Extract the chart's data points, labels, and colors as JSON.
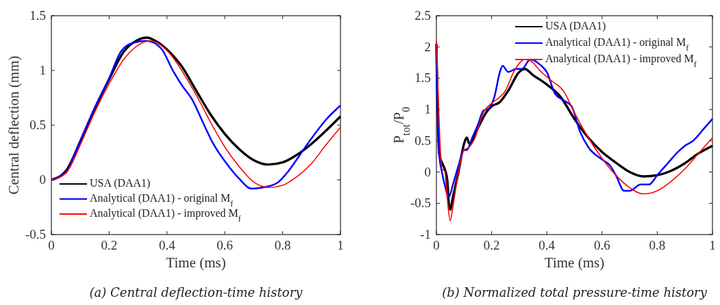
{
  "chart_data": [
    {
      "type": "line",
      "xlabel": "Time (ms)",
      "ylabel": "Central deflection (mm)",
      "xlim": [
        0,
        1
      ],
      "ylim": [
        -0.5,
        1.5
      ],
      "xticks": [
        0,
        0.2,
        0.4,
        0.6,
        0.8,
        1
      ],
      "yticks": [
        -0.5,
        0,
        0.5,
        1,
        1.5
      ],
      "legend": "bottom left",
      "grid": false,
      "annotations": [
        "(a) Central deflection-time history"
      ],
      "series": [
        {
          "name": "USA (DAA1)",
          "color": "#000000",
          "x": [
            0,
            0.05,
            0.1,
            0.15,
            0.2,
            0.25,
            0.3,
            0.33,
            0.36,
            0.4,
            0.45,
            0.5,
            0.55,
            0.6,
            0.65,
            0.7,
            0.75,
            0.8,
            0.85,
            0.9,
            0.95,
            1
          ],
          "values": [
            0,
            0.08,
            0.35,
            0.65,
            0.92,
            1.17,
            1.28,
            1.3,
            1.27,
            1.19,
            1.04,
            0.82,
            0.6,
            0.42,
            0.28,
            0.18,
            0.14,
            0.16,
            0.23,
            0.33,
            0.45,
            0.58
          ]
        },
        {
          "name": "Analytical (DAA1) - original M$_{f}$",
          "color": "#0000ff",
          "x": [
            0,
            0.05,
            0.1,
            0.15,
            0.2,
            0.24,
            0.28,
            0.33,
            0.38,
            0.42,
            0.45,
            0.49,
            0.52,
            0.56,
            0.6,
            0.65,
            0.69,
            0.73,
            0.78,
            0.82,
            0.86,
            0.9,
            0.95,
            1
          ],
          "values": [
            0,
            0.07,
            0.36,
            0.66,
            0.93,
            1.17,
            1.25,
            1.27,
            1.2,
            1.0,
            0.87,
            0.72,
            0.55,
            0.33,
            0.17,
            0.01,
            -0.08,
            -0.07,
            -0.03,
            0.08,
            0.23,
            0.38,
            0.55,
            0.68
          ]
        },
        {
          "name": "Analytical (DAA1) - improved M$_{f}$",
          "color": "#ff0000",
          "x": [
            0,
            0.05,
            0.1,
            0.15,
            0.2,
            0.25,
            0.3,
            0.34,
            0.38,
            0.42,
            0.46,
            0.5,
            0.55,
            0.6,
            0.65,
            0.7,
            0.75,
            0.8,
            0.85,
            0.9,
            0.95,
            1
          ],
          "values": [
            0,
            0.06,
            0.32,
            0.62,
            0.88,
            1.1,
            1.23,
            1.27,
            1.23,
            1.12,
            0.96,
            0.78,
            0.53,
            0.3,
            0.12,
            -0.02,
            -0.07,
            -0.05,
            0.03,
            0.15,
            0.32,
            0.48
          ]
        }
      ]
    },
    {
      "type": "line",
      "xlabel": "Time (ms)",
      "ylabel": "P$_{tot}$/P$_{0}$",
      "xlim": [
        0,
        1
      ],
      "ylim": [
        -1,
        2.5
      ],
      "xticks": [
        0,
        0.2,
        0.4,
        0.6,
        0.8,
        1
      ],
      "yticks": [
        -1,
        -0.5,
        0,
        0.5,
        1,
        1.5,
        2,
        2.5
      ],
      "legend": "top",
      "grid": false,
      "annotations": [
        "(b)    Normalized total pressure-time history"
      ],
      "series": [
        {
          "name": "USA (DAA1)",
          "color": "#000000",
          "x": [
            0,
            0.01,
            0.02,
            0.03,
            0.04,
            0.045,
            0.05,
            0.06,
            0.08,
            0.1,
            0.11,
            0.12,
            0.15,
            0.18,
            0.2,
            0.23,
            0.26,
            0.3,
            0.32,
            0.35,
            0.4,
            0.45,
            0.5,
            0.55,
            0.6,
            0.65,
            0.7,
            0.75,
            0.8,
            0.85,
            0.9,
            0.95,
            1
          ],
          "values": [
            2.05,
            0.3,
            0.15,
            0.05,
            -0.15,
            -0.5,
            -0.6,
            -0.4,
            0,
            0.45,
            0.55,
            0.45,
            0.7,
            0.95,
            1.05,
            1.12,
            1.3,
            1.6,
            1.65,
            1.55,
            1.4,
            1.2,
            0.85,
            0.55,
            0.32,
            0.15,
            0,
            -0.07,
            -0.05,
            0.02,
            0.14,
            0.3,
            0.42
          ]
        },
        {
          "name": "Analytical (DAA1) - original M$_{f}$",
          "color": "#0000ff",
          "x": [
            0,
            0.01,
            0.02,
            0.03,
            0.045,
            0.06,
            0.08,
            0.1,
            0.11,
            0.13,
            0.15,
            0.17,
            0.19,
            0.21,
            0.23,
            0.24,
            0.26,
            0.29,
            0.31,
            0.34,
            0.38,
            0.4,
            0.43,
            0.46,
            0.49,
            0.52,
            0.55,
            0.6,
            0.63,
            0.65,
            0.68,
            0.7,
            0.74,
            0.77,
            0.8,
            0.84,
            0.87,
            0.9,
            0.93,
            0.97,
            1
          ],
          "values": [
            2.05,
            0.3,
            0,
            -0.2,
            -0.4,
            -0.2,
            0.1,
            0.35,
            0.35,
            0.55,
            0.75,
            0.98,
            1.02,
            1.2,
            1.6,
            1.7,
            1.6,
            1.65,
            1.65,
            1.8,
            1.7,
            1.6,
            1.25,
            1.15,
            1.05,
            0.65,
            0.4,
            0.2,
            0.1,
            -0.05,
            -0.3,
            -0.3,
            -0.2,
            -0.2,
            -0.05,
            0.15,
            0.3,
            0.42,
            0.5,
            0.7,
            0.85
          ]
        },
        {
          "name": "Analytical (DAA1) - improved M$_{f}$",
          "color": "#ff0000",
          "x": [
            0,
            0.01,
            0.02,
            0.03,
            0.04,
            0.05,
            0.06,
            0.08,
            0.1,
            0.12,
            0.14,
            0.17,
            0.2,
            0.23,
            0.25,
            0.28,
            0.32,
            0.34,
            0.38,
            0.42,
            0.46,
            0.5,
            0.55,
            0.6,
            0.65,
            0.7,
            0.75,
            0.8,
            0.85,
            0.9,
            0.95,
            1
          ],
          "values": [
            2.1,
            0.8,
            0.05,
            0.02,
            -0.45,
            -0.78,
            -0.55,
            0,
            0.35,
            0.4,
            0.55,
            0.95,
            1.1,
            1.2,
            1.3,
            1.6,
            1.8,
            1.78,
            1.6,
            1.45,
            1.3,
            0.95,
            0.55,
            0.22,
            -0.05,
            -0.25,
            -0.35,
            -0.3,
            -0.15,
            0.05,
            0.3,
            0.55
          ]
        }
      ]
    }
  ]
}
